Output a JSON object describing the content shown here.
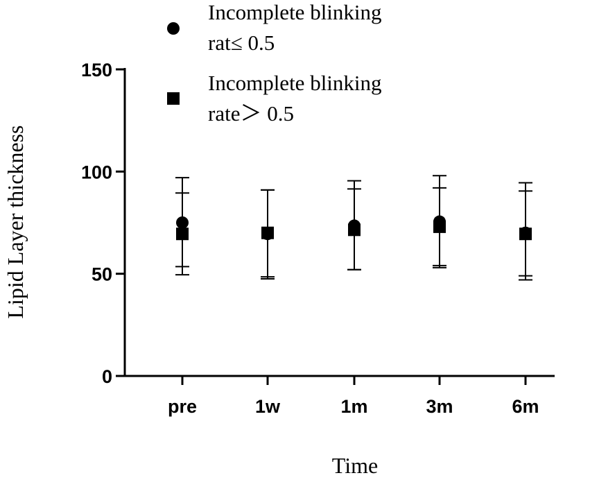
{
  "chart_data": {
    "type": "scatter",
    "categories": [
      "pre",
      "1w",
      "1m",
      "3m",
      "6m"
    ],
    "xlabel": "Time",
    "ylabel": "Lipid Layer thickness",
    "ylim": [
      0,
      150
    ],
    "yticks": [
      0,
      50,
      100,
      150
    ],
    "grid": false,
    "legend_position": "top",
    "series": [
      {
        "name": "Incomplete blinking rat≤ 0.5",
        "legend_lines": [
          "Incomplete blinking",
          "rat≤  0.5"
        ],
        "marker": "circle",
        "color": "#000000",
        "values": [
          75,
          69.5,
          73.5,
          75.5,
          70
        ],
        "err_low": [
          53.5,
          48.5,
          52,
          54,
          49
        ],
        "err_high": [
          97,
          91,
          95.5,
          98,
          94.5
        ]
      },
      {
        "name": "Incomplete blinking rate> 0.5",
        "legend_lines": [
          "Incomplete blinking",
          "rate＞  0.5"
        ],
        "marker": "square",
        "color": "#000000",
        "values": [
          69.5,
          70,
          71.5,
          73,
          69.5
        ],
        "err_low": [
          49.5,
          47.5,
          52,
          53,
          47
        ],
        "err_high": [
          89.5,
          91,
          91.5,
          92,
          90.5
        ]
      }
    ]
  }
}
